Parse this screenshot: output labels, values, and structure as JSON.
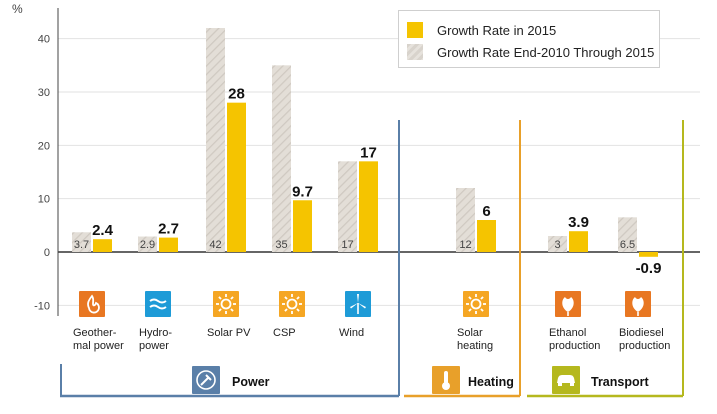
{
  "chart_data": {
    "type": "bar",
    "ylabel": "%",
    "ylim": [
      -12,
      45
    ],
    "yticks": [
      -10,
      0,
      10,
      20,
      30,
      40
    ],
    "grid": true,
    "legend_position": "top-right",
    "series": [
      {
        "name": "Growth Rate in 2015",
        "color": "#f5c400"
      },
      {
        "name": "Growth Rate End-2010 Through 2015",
        "color": "#ddd8d0"
      }
    ],
    "categories": [
      {
        "label": "Geother-\nmal power",
        "icon": "geothermal-icon",
        "icon_color": "#e87722",
        "value_2015": 2.4,
        "label_2015": "2.4",
        "value_2010_2015": 3.7,
        "label_2010_2015": "3.7"
      },
      {
        "label": "Hydro-\npower",
        "icon": "hydropower-icon",
        "icon_color": "#1e9bd7",
        "value_2015": 2.7,
        "label_2015": "2.7",
        "value_2010_2015": 2.9,
        "label_2010_2015": "2.9"
      },
      {
        "label": "Solar PV",
        "icon": "sun-icon",
        "icon_color": "#f5a623",
        "value_2015": 28,
        "label_2015": "28",
        "value_2010_2015": 42,
        "label_2010_2015": "42"
      },
      {
        "label": "CSP",
        "icon": "sun-icon",
        "icon_color": "#f5a623",
        "value_2015": 9.7,
        "label_2015": "9.7",
        "value_2010_2015": 35,
        "label_2010_2015": "35"
      },
      {
        "label": "Wind",
        "icon": "wind-turbine-icon",
        "icon_color": "#1e9bd7",
        "value_2015": 17,
        "label_2015": "17",
        "value_2010_2015": 17,
        "label_2010_2015": "17"
      },
      {
        "label": "Solar\nheating",
        "icon": "sun-icon",
        "icon_color": "#f5a623",
        "value_2015": 6,
        "label_2015": "6",
        "value_2010_2015": 12,
        "label_2010_2015": "12"
      },
      {
        "label": "Ethanol\nproduction",
        "icon": "leaf-icon",
        "icon_color": "#e87722",
        "value_2015": 3.9,
        "label_2015": "3.9",
        "value_2010_2015": 3,
        "label_2010_2015": "3"
      },
      {
        "label": "Biodiesel\nproduction",
        "icon": "leaf-icon",
        "icon_color": "#e87722",
        "value_2015": -0.9,
        "label_2015": "-0.9",
        "value_2010_2015": 6.5,
        "label_2010_2015": "6.5"
      }
    ],
    "sectors": [
      {
        "name": "Power",
        "icon": "power-plug-icon",
        "color": "#5a7fa8",
        "categories": [
          0,
          4
        ]
      },
      {
        "name": "Heating",
        "icon": "thermometer-icon",
        "color": "#e8a02a",
        "categories": [
          5,
          5
        ]
      },
      {
        "name": "Transport",
        "icon": "car-icon",
        "color": "#b5b81e",
        "categories": [
          6,
          7
        ]
      }
    ]
  }
}
